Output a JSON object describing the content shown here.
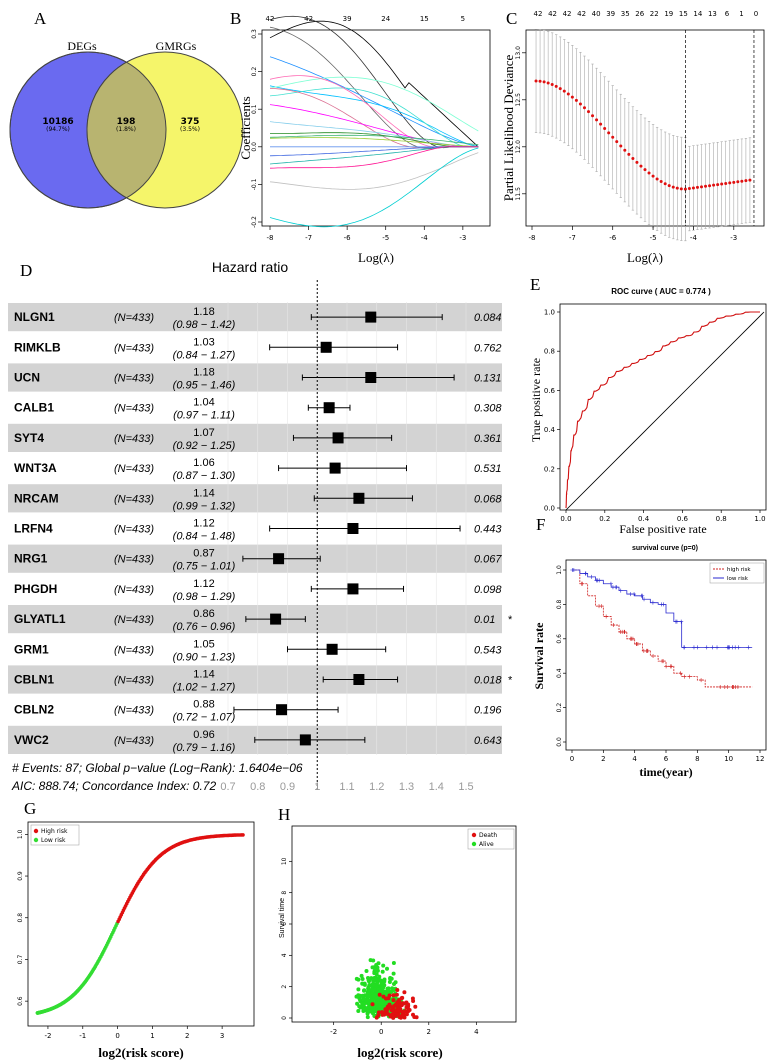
{
  "panels": {
    "A": "A",
    "B": "B",
    "C": "C",
    "D": "D",
    "E": "E",
    "F": "F",
    "G": "G",
    "H": "H"
  },
  "colors": {
    "venn_left": "#6a6af0",
    "venn_right": "#f5f56a",
    "venn_overlap": "#b8b470",
    "dev_points": "#e01010",
    "roc_line": "#d01010",
    "high_risk": "#d02020",
    "low_risk": "#2a2ad0",
    "risk_high": "#e01010",
    "risk_low": "#33dd33",
    "death": "#e01010",
    "alive": "#22dd22",
    "forest_band": "#d3d3d3"
  },
  "chart_data": [
    {
      "panel": "A",
      "type": "venn",
      "sets": [
        "DEGs",
        "GMRGs"
      ],
      "left_only": {
        "count": "10186",
        "pct": "(94.7%)"
      },
      "overlap": {
        "count": "198",
        "pct": "(1.8%)"
      },
      "right_only": {
        "count": "375",
        "pct": "(3.5%)"
      }
    },
    {
      "panel": "B",
      "type": "line",
      "title": "",
      "xlabel": "Log(λ)",
      "ylabel": "Coefficients",
      "xlim": [
        -8,
        -2.4
      ],
      "ylim": [
        -0.2,
        0.3
      ],
      "xticks": [
        "-8",
        "-7",
        "-6",
        "-5",
        "-4",
        "-3"
      ],
      "yticks": [
        "-0.2",
        "-0.1",
        "0.0",
        "0.1",
        "0.2",
        "0.3"
      ],
      "top_ticks": [
        "42",
        "42",
        "39",
        "24",
        "15",
        "5"
      ],
      "series_colors": [
        "#000000",
        "#333333",
        "#666666",
        "#1e90ff",
        "#00bfff",
        "#40e0d0",
        "#7fffd4",
        "#ff69b4",
        "#db7093",
        "#ff00ff",
        "#87ceeb",
        "#228b22",
        "#3cb371",
        "#9acd32",
        "#6495ed",
        "#4169e1",
        "#20b2aa",
        "#ff1493",
        "#c0c0c0",
        "#00ced1"
      ],
      "series_start": [
        0.29,
        0.27,
        0.25,
        0.23,
        0.21,
        0.19,
        0.17,
        0.15,
        0.12,
        0.1,
        0.08,
        0.05,
        0.03,
        0.02,
        0.0,
        -0.02,
        -0.05,
        -0.08,
        -0.12,
        -0.18
      ]
    },
    {
      "panel": "C",
      "type": "scatter",
      "xlabel": "Log(λ)",
      "ylabel": "Partial Likelihood Deviance",
      "xlim": [
        -8,
        -2.4
      ],
      "ylim": [
        11.2,
        13.2
      ],
      "xticks": [
        "-8",
        "-7",
        "-6",
        "-5",
        "-4",
        "-3"
      ],
      "yticks": [
        "11.5",
        "12.0",
        "12.5",
        "13.0"
      ],
      "top_ticks": [
        "42",
        "42",
        "42",
        "42",
        "40",
        "39",
        "35",
        "26",
        "22",
        "19",
        "15",
        "14",
        "13",
        "6",
        "1",
        "0"
      ],
      "vlines": [
        -4.2,
        -2.5
      ]
    },
    {
      "panel": "D",
      "type": "forest",
      "title": "Hazard ratio",
      "xticks": [
        "0.7",
        "0.8",
        "0.9",
        "1",
        "1.1",
        "1.2",
        "1.3",
        "1.4",
        "1.5"
      ],
      "rows": [
        {
          "gene": "NLGN1",
          "n": "(N=433)",
          "hr": "1.18",
          "ci": "(0.98 − 1.42)",
          "p": "0.084",
          "star": "",
          "hr_v": 1.18,
          "lo": 0.98,
          "hi": 1.42
        },
        {
          "gene": "RIMKLB",
          "n": "(N=433)",
          "hr": "1.03",
          "ci": "(0.84 − 1.27)",
          "p": "0.762",
          "star": "",
          "hr_v": 1.03,
          "lo": 0.84,
          "hi": 1.27
        },
        {
          "gene": "UCN",
          "n": "(N=433)",
          "hr": "1.18",
          "ci": "(0.95 − 1.46)",
          "p": "0.131",
          "star": "",
          "hr_v": 1.18,
          "lo": 0.95,
          "hi": 1.46
        },
        {
          "gene": "CALB1",
          "n": "(N=433)",
          "hr": "1.04",
          "ci": "(0.97 − 1.11)",
          "p": "0.308",
          "star": "",
          "hr_v": 1.04,
          "lo": 0.97,
          "hi": 1.11
        },
        {
          "gene": "SYT4",
          "n": "(N=433)",
          "hr": "1.07",
          "ci": "(0.92 − 1.25)",
          "p": "0.361",
          "star": "",
          "hr_v": 1.07,
          "lo": 0.92,
          "hi": 1.25
        },
        {
          "gene": "WNT3A",
          "n": "(N=433)",
          "hr": "1.06",
          "ci": "(0.87 − 1.30)",
          "p": "0.531",
          "star": "",
          "hr_v": 1.06,
          "lo": 0.87,
          "hi": 1.3
        },
        {
          "gene": "NRCAM",
          "n": "(N=433)",
          "hr": "1.14",
          "ci": "(0.99 − 1.32)",
          "p": "0.068",
          "star": "",
          "hr_v": 1.14,
          "lo": 0.99,
          "hi": 1.32
        },
        {
          "gene": "LRFN4",
          "n": "(N=433)",
          "hr": "1.12",
          "ci": "(0.84 − 1.48)",
          "p": "0.443",
          "star": "",
          "hr_v": 1.12,
          "lo": 0.84,
          "hi": 1.48
        },
        {
          "gene": "NRG1",
          "n": "(N=433)",
          "hr": "0.87",
          "ci": "(0.75 − 1.01)",
          "p": "0.067",
          "star": "",
          "hr_v": 0.87,
          "lo": 0.75,
          "hi": 1.01
        },
        {
          "gene": "PHGDH",
          "n": "(N=433)",
          "hr": "1.12",
          "ci": "(0.98 − 1.29)",
          "p": "0.098",
          "star": "",
          "hr_v": 1.12,
          "lo": 0.98,
          "hi": 1.29
        },
        {
          "gene": "GLYATL1",
          "n": "(N=433)",
          "hr": "0.86",
          "ci": "(0.76 − 0.96)",
          "p": "0.01",
          "star": "*",
          "hr_v": 0.86,
          "lo": 0.76,
          "hi": 0.96
        },
        {
          "gene": "GRM1",
          "n": "(N=433)",
          "hr": "1.05",
          "ci": "(0.90 − 1.23)",
          "p": "0.543",
          "star": "",
          "hr_v": 1.05,
          "lo": 0.9,
          "hi": 1.23
        },
        {
          "gene": "CBLN1",
          "n": "(N=433)",
          "hr": "1.14",
          "ci": "(1.02 − 1.27)",
          "p": "0.018",
          "star": "*",
          "hr_v": 1.14,
          "lo": 1.02,
          "hi": 1.27
        },
        {
          "gene": "CBLN2",
          "n": "(N=433)",
          "hr": "0.88",
          "ci": "(0.72 − 1.07)",
          "p": "0.196",
          "star": "",
          "hr_v": 0.88,
          "lo": 0.72,
          "hi": 1.07
        },
        {
          "gene": "VWC2",
          "n": "(N=433)",
          "hr": "0.96",
          "ci": "(0.79 − 1.16)",
          "p": "0.643",
          "star": "",
          "hr_v": 0.96,
          "lo": 0.79,
          "hi": 1.16
        }
      ],
      "footer1": "# Events: 87; Global p−value (Log−Rank): 1.6404e−06",
      "footer2": "AIC: 888.74; Concordance Index: 0.72"
    },
    {
      "panel": "E",
      "type": "line",
      "title": "ROC curve ( AUC =  0.774 )",
      "xlabel": "False positive rate",
      "ylabel": "True positive rate",
      "xlim": [
        0,
        1
      ],
      "ylim": [
        0,
        1
      ],
      "xticks": [
        "0.0",
        "0.2",
        "0.4",
        "0.6",
        "0.8",
        "1.0"
      ],
      "yticks": [
        "0.0",
        "0.2",
        "0.4",
        "0.6",
        "0.8",
        "1.0"
      ],
      "x": [
        0,
        0.005,
        0.01,
        0.02,
        0.03,
        0.05,
        0.07,
        0.1,
        0.13,
        0.16,
        0.2,
        0.24,
        0.28,
        0.32,
        0.36,
        0.4,
        0.44,
        0.48,
        0.52,
        0.56,
        0.6,
        0.64,
        0.68,
        0.72,
        0.76,
        0.8,
        0.85,
        0.9,
        0.95,
        1
      ],
      "y": [
        0,
        0.08,
        0.15,
        0.22,
        0.3,
        0.38,
        0.45,
        0.5,
        0.56,
        0.6,
        0.63,
        0.67,
        0.7,
        0.72,
        0.74,
        0.76,
        0.78,
        0.8,
        0.83,
        0.85,
        0.87,
        0.88,
        0.9,
        0.93,
        0.95,
        0.97,
        0.98,
        0.99,
        1,
        1
      ]
    },
    {
      "panel": "F",
      "type": "line",
      "title": "survival curve (p=0)",
      "xlabel": "time(year)",
      "ylabel": "Survival rate",
      "xlim": [
        0,
        12
      ],
      "ylim": [
        0,
        1
      ],
      "xticks": [
        "0",
        "2",
        "4",
        "6",
        "8",
        "10",
        "12"
      ],
      "yticks": [
        "0.0",
        "0.2",
        "0.4",
        "0.6",
        "0.8",
        "1.0"
      ],
      "legend": [
        "high risk",
        "low risk"
      ],
      "series": [
        {
          "name": "high risk",
          "x": [
            0,
            0.5,
            1,
            1.5,
            2,
            2.5,
            3,
            3.5,
            4,
            4.5,
            5,
            5.5,
            6,
            6.5,
            7,
            7.5,
            8,
            8.5,
            9,
            10,
            11.5
          ],
          "y": [
            1,
            0.92,
            0.85,
            0.79,
            0.73,
            0.68,
            0.64,
            0.6,
            0.57,
            0.53,
            0.5,
            0.47,
            0.44,
            0.4,
            0.38,
            0.38,
            0.36,
            0.32,
            0.32,
            0.32,
            0.32
          ]
        },
        {
          "name": "low risk",
          "x": [
            0,
            0.5,
            1,
            1.5,
            2,
            2.5,
            3,
            3.5,
            4,
            4.5,
            5,
            5.5,
            6,
            6.5,
            7,
            8,
            9,
            10,
            11.5
          ],
          "y": [
            1,
            0.98,
            0.96,
            0.94,
            0.92,
            0.9,
            0.88,
            0.86,
            0.85,
            0.83,
            0.81,
            0.8,
            0.75,
            0.7,
            0.55,
            0.55,
            0.55,
            0.55,
            0.55
          ]
        }
      ]
    },
    {
      "panel": "G",
      "type": "scatter",
      "xlabel": "log2(risk score)",
      "ylabel": "",
      "xlim": [
        -2.4,
        3.8
      ],
      "ylim": [
        0.55,
        1.02
      ],
      "xticks": [
        "-2",
        "-1",
        "0",
        "1",
        "2",
        "3"
      ],
      "yticks": [
        "0.6",
        "0.7",
        "0.8",
        "0.9",
        "1.0"
      ],
      "legend": [
        "High risk",
        "Low risk"
      ]
    },
    {
      "panel": "H",
      "type": "scatter",
      "xlabel": "log2(risk score)",
      "ylabel": "Survival time",
      "xlim": [
        -3.5,
        5.5
      ],
      "ylim": [
        0,
        12
      ],
      "xticks": [
        "-2",
        "0",
        "2",
        "4"
      ],
      "yticks": [
        "0",
        "2",
        "4",
        "6",
        "8",
        "10"
      ],
      "legend": [
        "Death",
        "Alive"
      ]
    }
  ]
}
